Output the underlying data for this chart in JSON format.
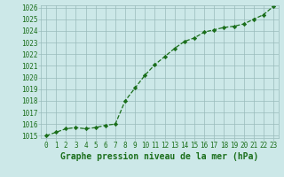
{
  "x": [
    0,
    1,
    2,
    3,
    4,
    5,
    6,
    7,
    8,
    9,
    10,
    11,
    12,
    13,
    14,
    15,
    16,
    17,
    18,
    19,
    20,
    21,
    22,
    23
  ],
  "y": [
    1015.0,
    1015.3,
    1015.6,
    1015.7,
    1015.6,
    1015.7,
    1015.9,
    1016.0,
    1018.0,
    1019.1,
    1020.2,
    1021.1,
    1021.8,
    1022.5,
    1023.1,
    1023.4,
    1023.9,
    1024.1,
    1024.3,
    1024.4,
    1024.6,
    1025.0,
    1025.4,
    1026.1
  ],
  "ylim": [
    1015,
    1026
  ],
  "yticks": [
    1015,
    1016,
    1017,
    1018,
    1019,
    1020,
    1021,
    1022,
    1023,
    1024,
    1025,
    1026
  ],
  "xticks": [
    0,
    1,
    2,
    3,
    4,
    5,
    6,
    7,
    8,
    9,
    10,
    11,
    12,
    13,
    14,
    15,
    16,
    17,
    18,
    19,
    20,
    21,
    22,
    23
  ],
  "xlabel": "Graphe pression niveau de la mer (hPa)",
  "line_color": "#1a6e1a",
  "marker": "D",
  "marker_size": 2.2,
  "bg_color": "#cce8e8",
  "grid_color": "#99bbbb",
  "tick_label_color": "#1a6e1a",
  "xlabel_color": "#1a6e1a",
  "tick_fontsize": 5.5,
  "xlabel_fontsize": 7.0,
  "linewidth": 0.9
}
